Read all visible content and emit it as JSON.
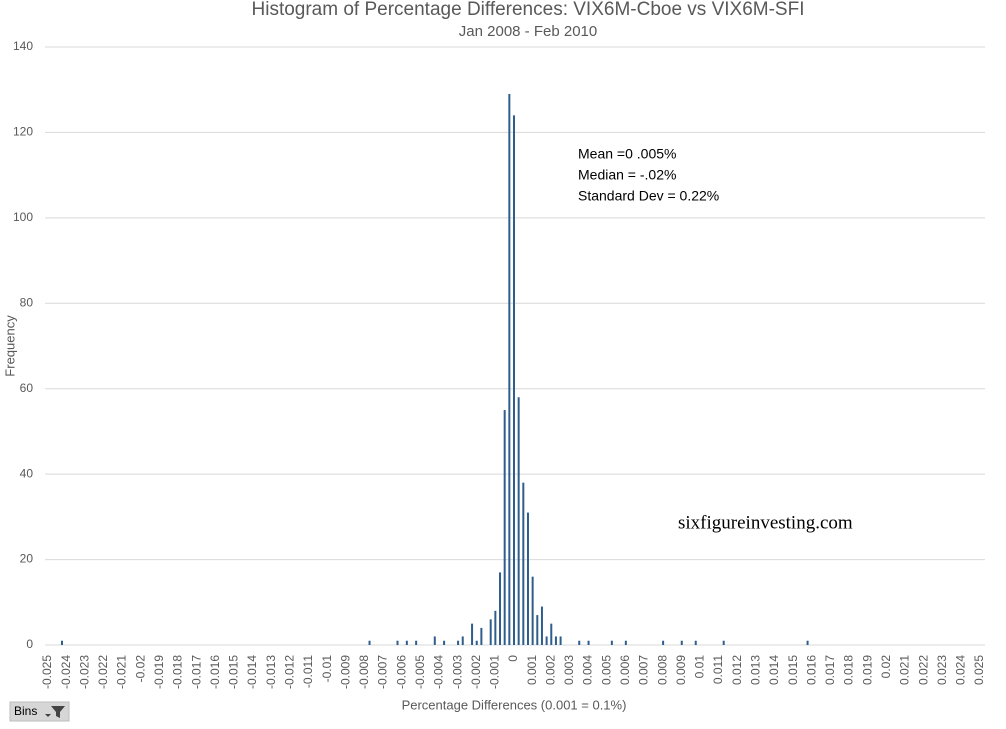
{
  "chart_data": {
    "type": "bar",
    "title": "Histogram of Percentage Differences: VIX6M-Cboe vs VIX6M-SFI",
    "subtitle": "Jan 2008 - Feb 2010",
    "x_label": "Percentage Differences (0.001 = 0.1%)",
    "y_label": "Frequency",
    "annotations": [
      "Mean  =0 .005%",
      "Median = -.02%",
      "Standard Dev = 0.22%"
    ],
    "watermark": "sixfigureinvesting.com",
    "color": "#2f5d8c",
    "grid": true,
    "x": [
      -0.02425,
      -0.00775,
      -0.00625,
      -0.00575,
      -0.00525,
      -0.00425,
      -0.00375,
      -0.003,
      -0.00275,
      -0.00225,
      -0.002,
      -0.00175,
      -0.00125,
      -0.001,
      -0.00075,
      -0.0005,
      -0.00025,
      0,
      0.00025,
      0.0005,
      0.00075,
      0.001,
      0.00125,
      0.0015,
      0.00175,
      0.002,
      0.00225,
      0.0025,
      0.0035,
      0.004,
      0.00525,
      0.006,
      0.008,
      0.009,
      0.00975,
      0.01125,
      0.01575
    ],
    "values": [
      1,
      1,
      1,
      1,
      1,
      2,
      1,
      1,
      2,
      5,
      1,
      4,
      6,
      8,
      17,
      55,
      129,
      124,
      58,
      38,
      31,
      16,
      7,
      9,
      2,
      5,
      2,
      2,
      1,
      1,
      1,
      1,
      1,
      1,
      1,
      1,
      1
    ],
    "xlim": [
      -0.025,
      0.025
    ],
    "xticks": [
      -0.025,
      -0.024,
      -0.023,
      -0.022,
      -0.021,
      -0.02,
      -0.019,
      -0.018,
      -0.017,
      -0.016,
      -0.015,
      -0.014,
      -0.013,
      -0.012,
      -0.011,
      -0.01,
      -0.009,
      -0.008,
      -0.007,
      -0.006,
      -0.005,
      -0.004,
      -0.003,
      -0.002,
      -0.001,
      0,
      0.001,
      0.002,
      0.003,
      0.004,
      0.005,
      0.006,
      0.007,
      0.008,
      0.009,
      0.01,
      0.011,
      0.012,
      0.013,
      0.014,
      0.015,
      0.016,
      0.017,
      0.018,
      0.019,
      0.02,
      0.021,
      0.022,
      0.023,
      0.024,
      0.025
    ],
    "ylim": [
      0,
      140
    ],
    "yticks": [
      0,
      20,
      40,
      60,
      80,
      100,
      120,
      140
    ]
  },
  "ui": {
    "filter_button": "Bins"
  }
}
